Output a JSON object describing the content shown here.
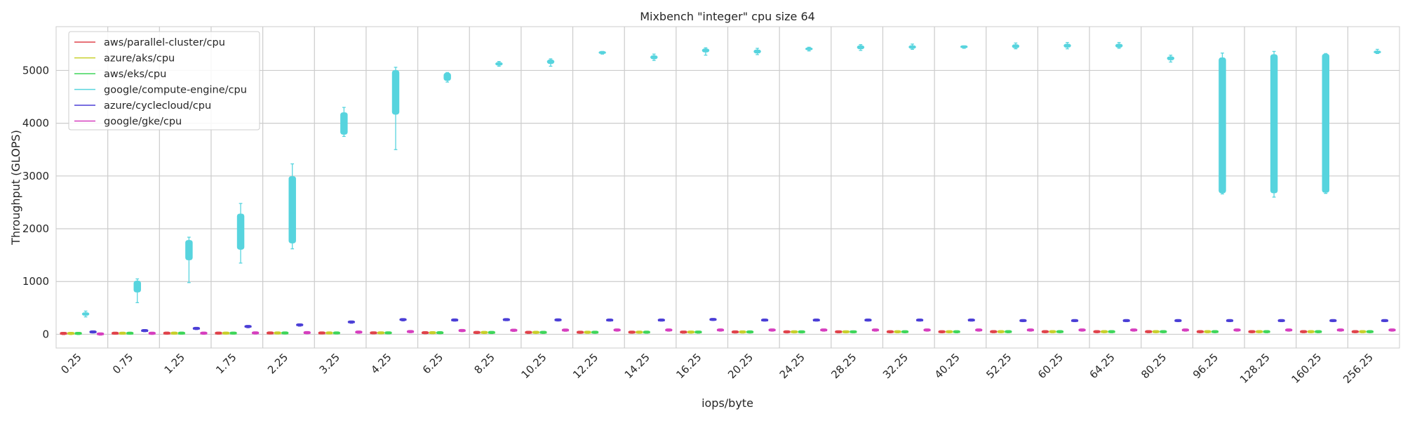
{
  "chart_data": {
    "type": "box",
    "title": "Mixbench \"integer\" cpu size 64",
    "xlabel": "iops/byte",
    "ylabel": "Throughput (GLOPS)",
    "ylim": [
      -260,
      5830
    ],
    "yticks": [
      0,
      1000,
      2000,
      3000,
      4000,
      5000
    ],
    "grid": true,
    "legend_position": "top-left",
    "categories": [
      "0.25",
      "0.75",
      "1.25",
      "1.75",
      "2.25",
      "3.25",
      "4.25",
      "6.25",
      "8.25",
      "10.25",
      "12.25",
      "14.25",
      "16.25",
      "20.25",
      "24.25",
      "28.25",
      "32.25",
      "40.25",
      "52.25",
      "60.25",
      "64.25",
      "80.25",
      "96.25",
      "128.25",
      "160.25",
      "256.25"
    ],
    "series": [
      {
        "name": "aws/parallel-cluster/cpu",
        "color": "#e0434b",
        "values": [
          [
            -5,
            0,
            2,
            4,
            6
          ],
          [
            1,
            3,
            4,
            6,
            7
          ],
          [
            2,
            4,
            5,
            7,
            8
          ],
          [
            3,
            5,
            6,
            8,
            9
          ],
          [
            5,
            7,
            8,
            10,
            12
          ],
          [
            6,
            8,
            9,
            11,
            12
          ],
          [
            8,
            10,
            12,
            14,
            16
          ],
          [
            10,
            13,
            15,
            17,
            19
          ],
          [
            14,
            17,
            19,
            21,
            23
          ],
          [
            16,
            19,
            21,
            23,
            25
          ],
          [
            18,
            21,
            23,
            25,
            27
          ],
          [
            20,
            23,
            25,
            27,
            29
          ],
          [
            22,
            25,
            27,
            29,
            31
          ],
          [
            24,
            27,
            29,
            31,
            33
          ],
          [
            26,
            29,
            31,
            33,
            35
          ],
          [
            27,
            30,
            32,
            34,
            36
          ],
          [
            28,
            31,
            33,
            35,
            37
          ],
          [
            28,
            31,
            33,
            35,
            37
          ],
          [
            29,
            32,
            34,
            36,
            38
          ],
          [
            29,
            32,
            34,
            36,
            38
          ],
          [
            29,
            32,
            34,
            36,
            38
          ],
          [
            29,
            32,
            34,
            36,
            38
          ],
          [
            29,
            32,
            34,
            36,
            38
          ],
          [
            29,
            32,
            34,
            36,
            38
          ],
          [
            29,
            32,
            34,
            36,
            38
          ],
          [
            29,
            32,
            34,
            36,
            38
          ]
        ]
      },
      {
        "name": "azure/aks/cpu",
        "color": "#c8cf2a",
        "values": [
          [
            -4,
            0,
            2,
            4,
            6
          ],
          [
            1,
            3,
            4,
            6,
            7
          ],
          [
            2,
            4,
            5,
            7,
            8
          ],
          [
            3,
            5,
            6,
            8,
            9
          ],
          [
            5,
            7,
            9,
            11,
            13
          ],
          [
            6,
            8,
            10,
            12,
            14
          ],
          [
            8,
            10,
            12,
            14,
            16
          ],
          [
            10,
            13,
            15,
            17,
            19
          ],
          [
            14,
            17,
            19,
            21,
            23
          ],
          [
            16,
            19,
            21,
            23,
            25
          ],
          [
            18,
            21,
            23,
            25,
            27
          ],
          [
            20,
            23,
            25,
            27,
            29
          ],
          [
            22,
            25,
            27,
            29,
            31
          ],
          [
            24,
            27,
            29,
            31,
            33
          ],
          [
            26,
            29,
            31,
            33,
            35
          ],
          [
            27,
            30,
            32,
            34,
            36
          ],
          [
            28,
            31,
            33,
            35,
            37
          ],
          [
            28,
            31,
            33,
            35,
            37
          ],
          [
            29,
            32,
            34,
            36,
            38
          ],
          [
            29,
            32,
            34,
            36,
            38
          ],
          [
            29,
            32,
            34,
            36,
            38
          ],
          [
            29,
            32,
            34,
            36,
            38
          ],
          [
            29,
            32,
            34,
            36,
            38
          ],
          [
            29,
            32,
            34,
            36,
            38
          ],
          [
            29,
            32,
            34,
            36,
            38
          ],
          [
            29,
            32,
            34,
            36,
            38
          ]
        ]
      },
      {
        "name": "aws/eks/cpu",
        "color": "#3fd65a",
        "values": [
          [
            -4,
            0,
            2,
            4,
            6
          ],
          [
            1,
            3,
            4,
            6,
            7
          ],
          [
            2,
            4,
            5,
            7,
            8
          ],
          [
            3,
            5,
            6,
            8,
            9
          ],
          [
            5,
            7,
            9,
            11,
            13
          ],
          [
            6,
            8,
            10,
            12,
            14
          ],
          [
            8,
            10,
            12,
            14,
            16
          ],
          [
            10,
            13,
            15,
            17,
            19
          ],
          [
            14,
            17,
            19,
            21,
            23
          ],
          [
            16,
            19,
            21,
            23,
            25
          ],
          [
            18,
            21,
            23,
            25,
            27
          ],
          [
            20,
            23,
            25,
            27,
            29
          ],
          [
            22,
            25,
            27,
            29,
            31
          ],
          [
            24,
            27,
            29,
            31,
            33
          ],
          [
            26,
            29,
            31,
            33,
            35
          ],
          [
            27,
            30,
            32,
            34,
            36
          ],
          [
            28,
            31,
            33,
            35,
            37
          ],
          [
            28,
            31,
            33,
            35,
            37
          ],
          [
            29,
            32,
            34,
            36,
            38
          ],
          [
            29,
            32,
            34,
            36,
            38
          ],
          [
            29,
            32,
            34,
            36,
            38
          ],
          [
            29,
            32,
            34,
            36,
            38
          ],
          [
            29,
            32,
            34,
            36,
            38
          ],
          [
            29,
            32,
            34,
            36,
            38
          ],
          [
            29,
            32,
            34,
            36,
            38
          ],
          [
            29,
            32,
            34,
            36,
            38
          ]
        ]
      },
      {
        "name": "google/compute-engine/cpu",
        "color": "#57d4de",
        "values": [
          [
            330,
            360,
            390,
            410,
            440
          ],
          [
            600,
            800,
            900,
            1010,
            1050
          ],
          [
            980,
            1410,
            1550,
            1780,
            1840
          ],
          [
            1350,
            1610,
            1900,
            2280,
            2480
          ],
          [
            1620,
            1730,
            2300,
            2990,
            3230
          ],
          [
            3750,
            3790,
            4000,
            4200,
            4300
          ],
          [
            3500,
            4170,
            4500,
            5000,
            5060
          ],
          [
            4780,
            4810,
            4900,
            4950,
            4960
          ],
          [
            5080,
            5100,
            5120,
            5150,
            5170
          ],
          [
            5080,
            5130,
            5160,
            5200,
            5220
          ],
          [
            5310,
            5320,
            5330,
            5340,
            5360
          ],
          [
            5190,
            5220,
            5250,
            5280,
            5310
          ],
          [
            5290,
            5350,
            5380,
            5410,
            5430
          ],
          [
            5300,
            5330,
            5360,
            5390,
            5420
          ],
          [
            5370,
            5390,
            5400,
            5420,
            5440
          ],
          [
            5380,
            5410,
            5440,
            5470,
            5490
          ],
          [
            5400,
            5420,
            5440,
            5470,
            5500
          ],
          [
            5420,
            5430,
            5440,
            5450,
            5460
          ],
          [
            5410,
            5430,
            5460,
            5490,
            5520
          ],
          [
            5410,
            5440,
            5470,
            5500,
            5530
          ],
          [
            5420,
            5440,
            5470,
            5500,
            5530
          ],
          [
            5160,
            5200,
            5230,
            5260,
            5290
          ],
          [
            2660,
            2680,
            4000,
            5240,
            5330
          ],
          [
            2600,
            2680,
            4000,
            5300,
            5360
          ],
          [
            2670,
            2690,
            4000,
            5310,
            5320
          ],
          [
            5320,
            5330,
            5340,
            5360,
            5400
          ]
        ]
      },
      {
        "name": "azure/cyclecloud/cpu",
        "color": "#4b3fd6",
        "values": [
          [
            25,
            28,
            30,
            32,
            35
          ],
          [
            50,
            53,
            55,
            57,
            60
          ],
          [
            90,
            94,
            97,
            100,
            104
          ],
          [
            125,
            130,
            135,
            140,
            145
          ],
          [
            155,
            160,
            165,
            170,
            175
          ],
          [
            210,
            215,
            220,
            225,
            230
          ],
          [
            255,
            260,
            265,
            270,
            275
          ],
          [
            250,
            253,
            255,
            258,
            260
          ],
          [
            258,
            260,
            262,
            264,
            266
          ],
          [
            252,
            255,
            258,
            261,
            264
          ],
          [
            250,
            252,
            254,
            256,
            258
          ],
          [
            250,
            252,
            254,
            256,
            258
          ],
          [
            262,
            264,
            266,
            268,
            270
          ],
          [
            250,
            252,
            254,
            256,
            258
          ],
          [
            250,
            252,
            254,
            256,
            258
          ],
          [
            250,
            252,
            254,
            256,
            258
          ],
          [
            250,
            252,
            254,
            256,
            258
          ],
          [
            250,
            252,
            254,
            256,
            258
          ],
          [
            240,
            242,
            244,
            246,
            248
          ],
          [
            240,
            242,
            244,
            246,
            248
          ],
          [
            240,
            242,
            244,
            246,
            248
          ],
          [
            240,
            242,
            244,
            246,
            248
          ],
          [
            240,
            242,
            244,
            246,
            248
          ],
          [
            240,
            242,
            244,
            246,
            248
          ],
          [
            240,
            242,
            244,
            246,
            248
          ],
          [
            240,
            242,
            244,
            246,
            248
          ]
        ]
      },
      {
        "name": "google/gke/cpu",
        "color": "#d63fbf",
        "values": [
          [
            -15,
            -10,
            -8,
            -6,
            -2
          ],
          [
            -2,
            2,
            4,
            6,
            8
          ],
          [
            0,
            4,
            6,
            8,
            10
          ],
          [
            5,
            9,
            11,
            13,
            15
          ],
          [
            10,
            14,
            16,
            18,
            20
          ],
          [
            20,
            24,
            26,
            28,
            30
          ],
          [
            30,
            34,
            36,
            38,
            40
          ],
          [
            50,
            54,
            56,
            58,
            60
          ],
          [
            55,
            59,
            61,
            63,
            65
          ],
          [
            58,
            62,
            64,
            66,
            68
          ],
          [
            60,
            64,
            66,
            68,
            70
          ],
          [
            60,
            64,
            66,
            68,
            70
          ],
          [
            60,
            64,
            66,
            68,
            70
          ],
          [
            60,
            64,
            66,
            68,
            70
          ],
          [
            60,
            64,
            66,
            68,
            70
          ],
          [
            60,
            64,
            66,
            68,
            70
          ],
          [
            60,
            64,
            66,
            68,
            70
          ],
          [
            60,
            64,
            66,
            68,
            70
          ],
          [
            60,
            64,
            66,
            68,
            70
          ],
          [
            60,
            64,
            66,
            68,
            70
          ],
          [
            60,
            64,
            66,
            68,
            70
          ],
          [
            60,
            64,
            66,
            68,
            70
          ],
          [
            60,
            64,
            66,
            68,
            70
          ],
          [
            60,
            64,
            66,
            68,
            70
          ],
          [
            60,
            64,
            66,
            68,
            70
          ],
          [
            60,
            64,
            66,
            68,
            70
          ]
        ]
      }
    ]
  }
}
